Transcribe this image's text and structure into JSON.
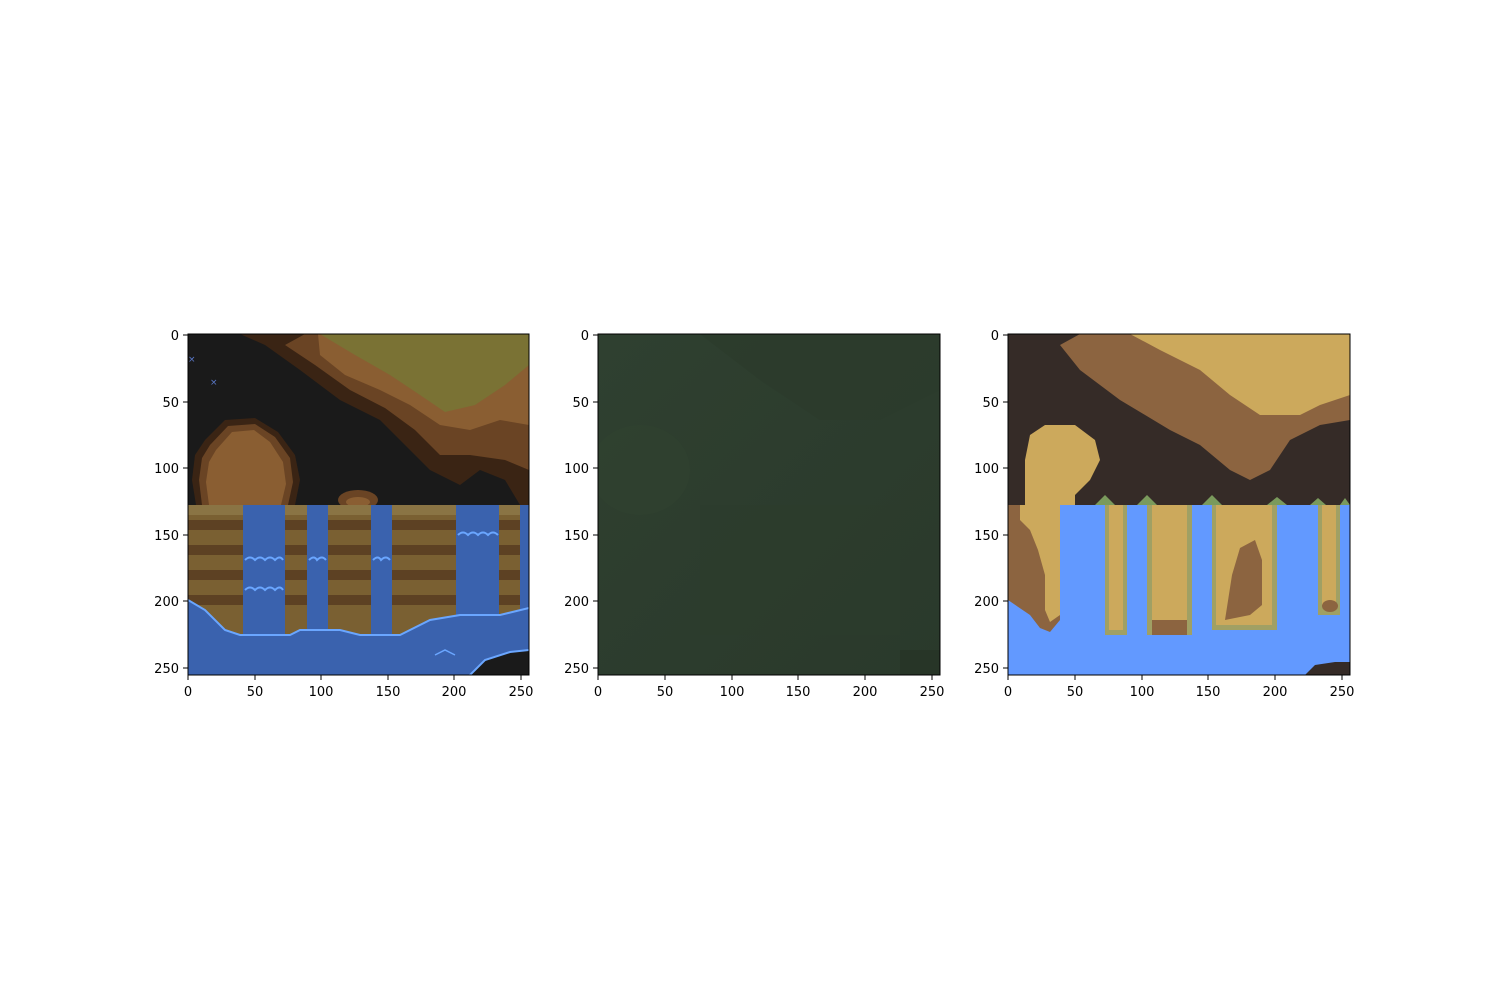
{
  "panels": [
    {
      "id": "input",
      "x_ticks": [
        "0",
        "50",
        "100",
        "150",
        "200",
        "250"
      ],
      "y_ticks": [
        "0",
        "50",
        "100",
        "150",
        "200",
        "250"
      ],
      "colors": {
        "cave_black": "#1a1a1a",
        "cliff_dark": "#3a2414",
        "cliff_mid": "#6a4424",
        "cliff_light": "#8a5e32",
        "grass_olive": "#7a7234",
        "water_blue": "#3a62ae",
        "water_light": "#6aa6ff",
        "cliff_tan": "#8a7444"
      }
    },
    {
      "id": "prediction",
      "x_ticks": [
        "0",
        "50",
        "100",
        "150",
        "200",
        "250"
      ],
      "y_ticks": [
        "0",
        "50",
        "100",
        "150",
        "200",
        "250"
      ],
      "colors": {
        "fill": "#2e3e2e",
        "fill_alt": "#2b3a2b"
      }
    },
    {
      "id": "segmentation",
      "x_ticks": [
        "0",
        "50",
        "100",
        "150",
        "200",
        "250"
      ],
      "y_ticks": [
        "0",
        "50",
        "100",
        "150",
        "200",
        "250"
      ],
      "colors": {
        "dark": "#352b27",
        "brown": "#8c6440",
        "tan": "#cca95c",
        "blue": "#6299ff",
        "green": "#7a9a5c",
        "olive": "#a0a064"
      }
    }
  ]
}
